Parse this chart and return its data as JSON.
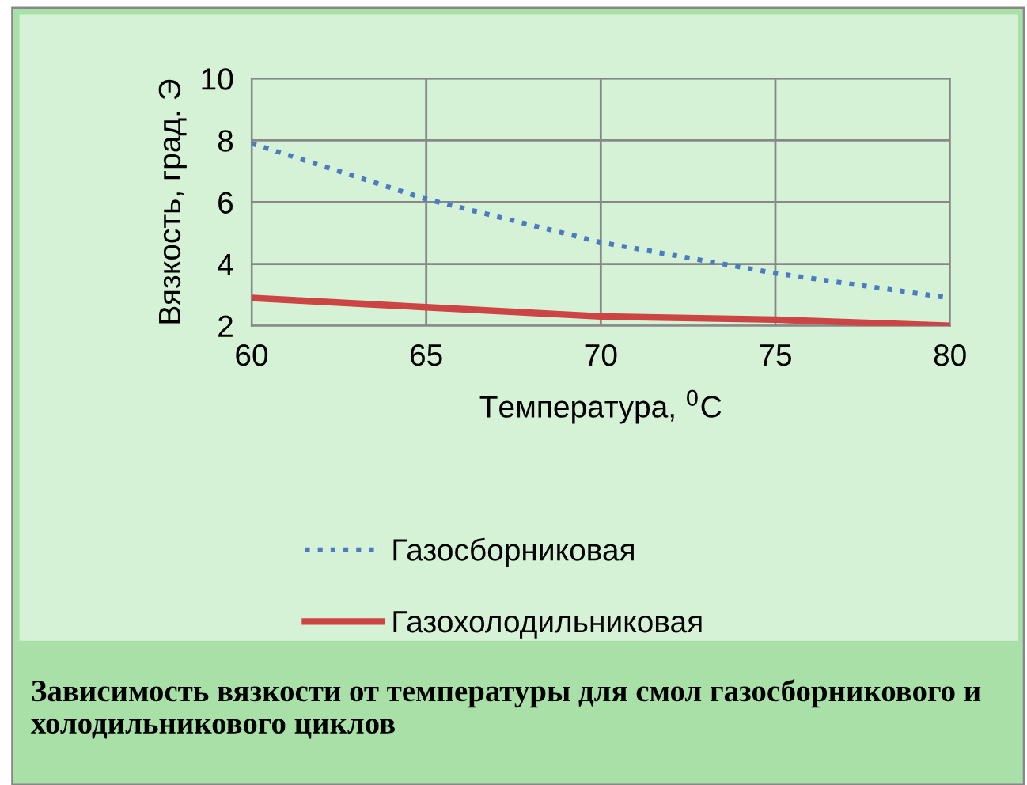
{
  "chart_data": {
    "type": "line",
    "x": [
      60,
      65,
      70,
      75,
      80
    ],
    "series": [
      {
        "name": "Газосборниковая",
        "color": "#4a7cc4",
        "values": [
          7.9,
          6.1,
          4.7,
          3.7,
          2.9
        ],
        "line_style": "dotted"
      },
      {
        "name": "Газохолодильниковая",
        "color": "#cc4444",
        "values": [
          2.9,
          2.6,
          2.3,
          2.2,
          2.0
        ],
        "line_style": "solid"
      }
    ],
    "xlabel": "Температура, $^{0}$C",
    "ylabel": "Вязкость, град. Э",
    "xlim": [
      60,
      80
    ],
    "xticks": [
      60,
      65,
      70,
      75,
      80
    ],
    "ylim": [
      2,
      10
    ],
    "yticks": [
      2,
      4,
      6,
      8,
      10
    ],
    "grid": true,
    "legend": "bottom",
    "marker": "none",
    "annotations": [
      "Зависимость вязкости от температуры для смол газосборникового и холодильникового циклов"
    ]
  }
}
